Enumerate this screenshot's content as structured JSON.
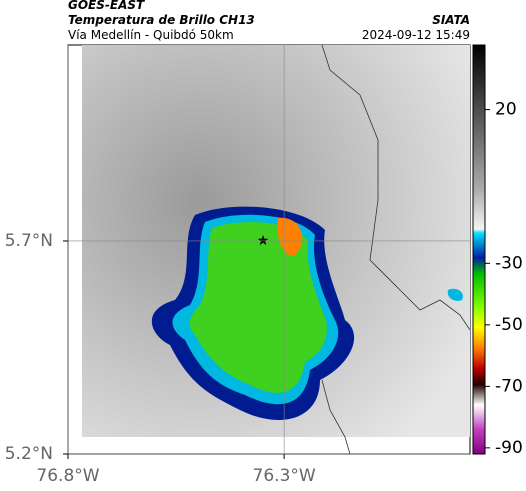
{
  "header": {
    "title": "GOES-EAST",
    "subtitle": "Temperatura de Brillo CH13",
    "location": "Vía Medellín - Quibdó 50km",
    "source": "SIATA",
    "timestamp": "2024-09-12 15:49"
  },
  "map": {
    "xlim": [
      -76.8,
      -75.87
    ],
    "ylim": [
      5.2,
      6.16
    ],
    "xticks": [
      {
        "value": -76.8,
        "label": "76.8°W"
      },
      {
        "value": -76.3,
        "label": "76.3°W"
      }
    ],
    "yticks": [
      {
        "value": 5.7,
        "label": "5.7°N"
      },
      {
        "value": 5.2,
        "label": "5.2°N"
      }
    ]
  },
  "colorbar": {
    "lim": [
      -92,
      41
    ],
    "ticks": [
      20,
      -30,
      -50,
      -70,
      -90
    ]
  }
}
